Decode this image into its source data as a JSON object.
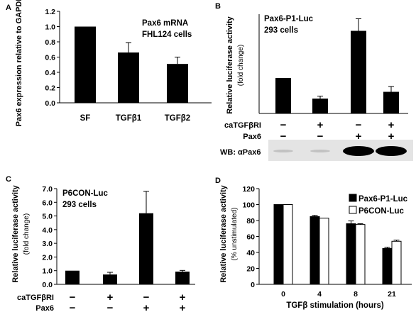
{
  "chart_data": [
    {
      "panel": "A",
      "type": "bar",
      "ylabel": "Pax6 expression relative to GAPDH",
      "annotation": [
        "Pax6 mRNA",
        "FHL124 cells"
      ],
      "categories": [
        "SF",
        "TGFβ1",
        "TGFβ2"
      ],
      "values": [
        1.0,
        0.66,
        0.51
      ],
      "errors": [
        0,
        0.13,
        0.09
      ],
      "ylim": [
        0,
        1.2
      ],
      "yticks": [
        "0.0",
        "0.2",
        "0.4",
        "0.6",
        "0.8",
        "1.0",
        "1.2"
      ],
      "bar_color": "#000000"
    },
    {
      "panel": "B",
      "type": "bar",
      "annotation": [
        "Pax6-P1-Luc",
        "293 cells"
      ],
      "ylabel": "Relative luciferase activity",
      "ylabel2": "(fold change)",
      "values": [
        1.0,
        0.42,
        2.33,
        0.61
      ],
      "errors": [
        0,
        0.07,
        0.34,
        0.15
      ],
      "ylim": [
        0,
        2.8
      ],
      "conditions": [
        {
          "label": "caTGFβRI",
          "signs": [
            "−",
            "+",
            "−",
            "+"
          ]
        },
        {
          "label": "Pax6",
          "signs": [
            "−",
            "−",
            "+",
            "+"
          ]
        }
      ],
      "blot_label": "WB: αPax6",
      "blot_intensity": [
        0.15,
        0.15,
        1.0,
        1.0
      ],
      "bar_color": "#000000"
    },
    {
      "panel": "C",
      "type": "bar",
      "annotation": [
        "P6CON-Luc",
        "293 cells"
      ],
      "ylabel": "Relative luciferase activity",
      "ylabel2": "(fold change)",
      "values": [
        1.0,
        0.72,
        5.2,
        0.93
      ],
      "errors": [
        0,
        0.16,
        1.6,
        0.09
      ],
      "ylim": [
        0,
        7.0
      ],
      "yticks": [
        "0.0",
        "1.0",
        "2.0",
        "3.0",
        "4.0",
        "5.0",
        "6.0",
        "7.0"
      ],
      "conditions": [
        {
          "label": "caTGFβRI",
          "signs": [
            "−",
            "+",
            "−",
            "+"
          ]
        },
        {
          "label": "Pax6",
          "signs": [
            "−",
            "−",
            "+",
            "+"
          ]
        }
      ],
      "bar_color": "#000000"
    },
    {
      "panel": "D",
      "type": "bar",
      "ylabel": "Relative luciferase activity",
      "ylabel2": "(% unstimulated)",
      "xlabel": "TGFβ stimulation (hours)",
      "categories": [
        "0",
        "4",
        "8",
        "21"
      ],
      "series": [
        {
          "name": "Pax6-P1-Luc",
          "values": [
            100,
            85,
            76,
            45
          ],
          "errors": [
            0,
            1.5,
            3.5,
            1.5
          ],
          "color": "#000000"
        },
        {
          "name": "P6CON-Luc",
          "values": [
            100,
            83,
            75,
            54
          ],
          "errors": [
            0,
            0,
            1,
            1.5
          ],
          "color": "#ffffff"
        }
      ],
      "ylim": [
        0,
        120
      ],
      "yticks": [
        "0",
        "20",
        "40",
        "60",
        "80",
        "100",
        "120"
      ],
      "legend": "top-right"
    }
  ]
}
